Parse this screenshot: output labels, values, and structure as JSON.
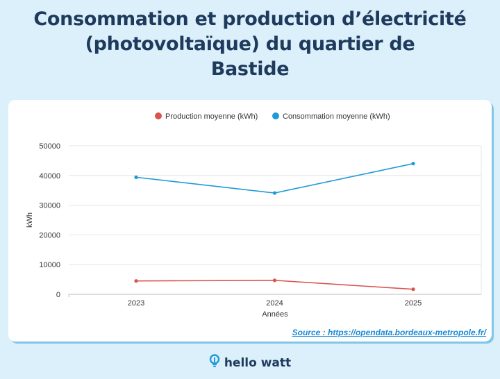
{
  "title_lines": [
    "Consommation et production d’électricité",
    "(photovoltaïque) du quartier de",
    "Bastide"
  ],
  "chart_data": {
    "type": "line",
    "x": [
      "2023",
      "2024",
      "2025"
    ],
    "series": [
      {
        "name": "Production moyenne (kWh)",
        "color": "#d9534f",
        "values": [
          4500,
          4700,
          1700
        ]
      },
      {
        "name": "Consommation moyenne (kWh)",
        "color": "#1f9ad6",
        "values": [
          39400,
          34100,
          44000
        ]
      }
    ],
    "xlabel": "Années",
    "ylabel": "kWh",
    "ylim": [
      0,
      50000
    ],
    "yticks": [
      0,
      10000,
      20000,
      30000,
      40000,
      50000
    ],
    "grid": true,
    "legend": "top"
  },
  "source": "Source : https://opendata.bordeaux-metropole.fr/",
  "brand": {
    "name": "hello watt",
    "icon": "lightbulb-icon"
  }
}
